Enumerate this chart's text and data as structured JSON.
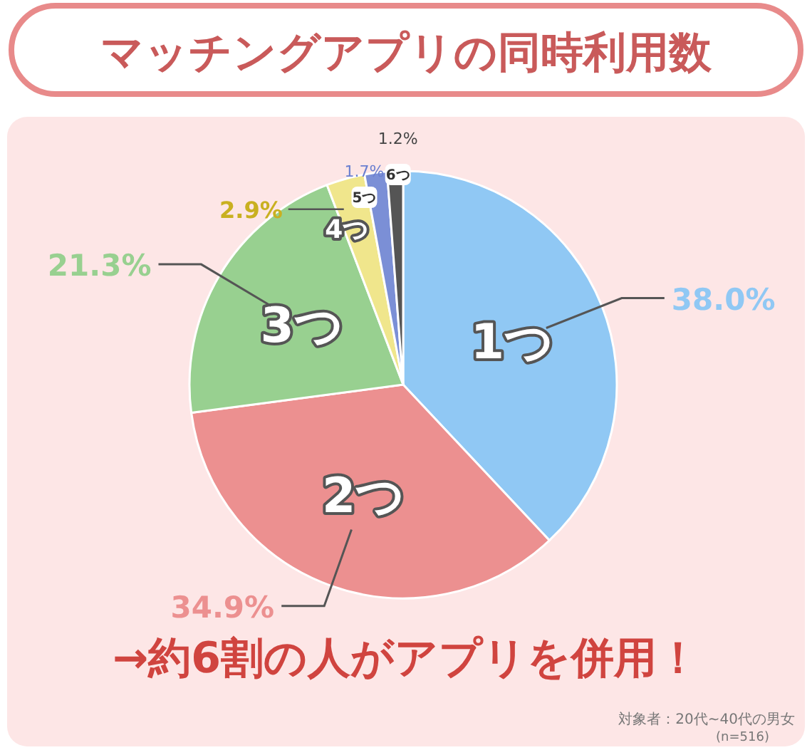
{
  "chart_data": {
    "type": "pie",
    "title": "マッチングアプリの同時利用数",
    "categories": [
      "1つ",
      "2つ",
      "3つ",
      "4つ",
      "5つ",
      "6つ"
    ],
    "values": [
      38.0,
      34.9,
      21.3,
      2.9,
      1.7,
      1.2
    ],
    "value_labels": [
      "38.0%",
      "34.9%",
      "21.3%",
      "2.9%",
      "1.7%",
      "1.2%"
    ],
    "colors": [
      "#90c8f4",
      "#ec9090",
      "#98d090",
      "#f0e68c",
      "#7b8fd6",
      "#555555"
    ],
    "legend": false,
    "annotations": [
      "→約6割の人がアプリを併用！",
      "対象者：20代~40代の男女",
      "(n=516)"
    ]
  }
}
